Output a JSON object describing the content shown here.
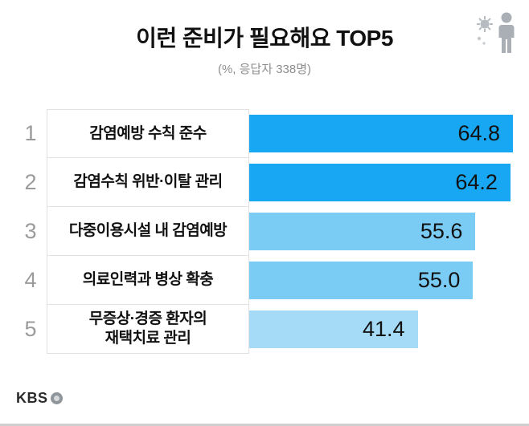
{
  "header": {
    "title": "이런 준비가 필요해요 TOP5",
    "subtitle": "(%, 응답자 338명)"
  },
  "chart_data": {
    "type": "bar",
    "orientation": "horizontal",
    "title": "이런 준비가 필요해요 TOP5",
    "subtitle": "(%, 응답자 338명)",
    "value_unit": "%",
    "respondents_note": "응답자 338명",
    "xlim": [
      0,
      64.8
    ],
    "grid": false,
    "legend": false,
    "categories": [
      "감염예방 수칙 준수",
      "감염수칙 위반·이탈 관리",
      "다중이용시설 내 감염예방",
      "의료인력과 병상 확충",
      "무증상·경증 환자의 재택치료 관리"
    ],
    "values": [
      64.8,
      64.2,
      55.6,
      55.0,
      41.4
    ],
    "rows": [
      {
        "rank": "1",
        "label_lines": [
          "감염예방 수칙 준수"
        ],
        "value": "64.8",
        "color": "#18a7f2"
      },
      {
        "rank": "2",
        "label_lines": [
          "감염수칙 위반·이탈 관리"
        ],
        "value": "64.2",
        "color": "#18a7f2"
      },
      {
        "rank": "3",
        "label_lines": [
          "다중이용시설 내 감염예방"
        ],
        "value": "55.6",
        "color": "#7accf5"
      },
      {
        "rank": "4",
        "label_lines": [
          "의료인력과 병상 확충"
        ],
        "value": "55.0",
        "color": "#7accf5"
      },
      {
        "rank": "5",
        "label_lines": [
          "무증상·경증 환자의",
          "재택치료 관리"
        ],
        "value": "41.4",
        "color": "#a6dbf8"
      }
    ],
    "colors": {
      "bar_top2": "#18a7f2",
      "bar_mid2": "#7accf5",
      "bar_last": "#a6dbf8"
    }
  },
  "icons": {
    "virus": "virus-icon",
    "person": "person-icon"
  },
  "footer": {
    "logo_text": "KBS"
  }
}
